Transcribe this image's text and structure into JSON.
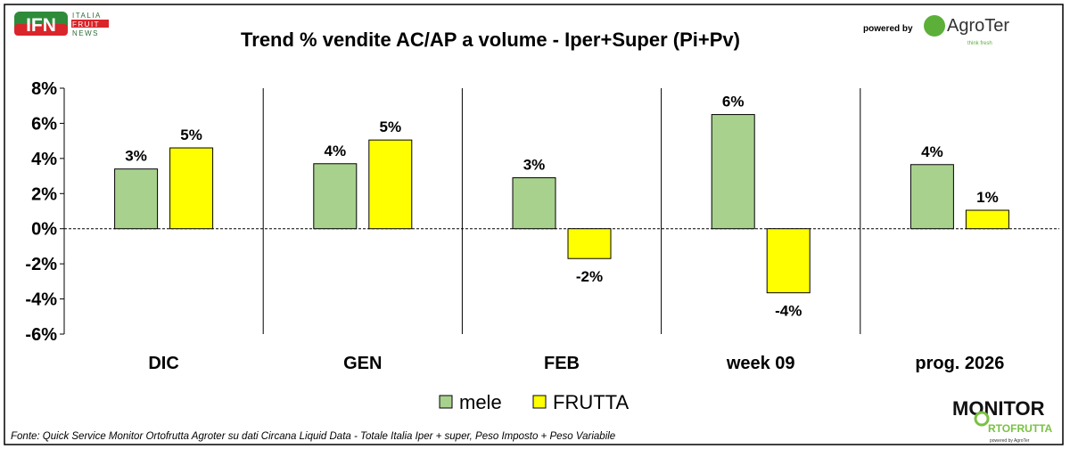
{
  "logos": {
    "ifn": {
      "mark": "IFN",
      "line1": "ITALIA",
      "line2": "FRUIT",
      "line3": "NEWS"
    },
    "powered_by": "powered by",
    "agroter": {
      "name": "AgroTer",
      "tagline": "think fresh"
    },
    "monitor": {
      "line1": "MONITOR",
      "line2": "RTOFRUTTA",
      "tagline": "powered by AgroTer"
    }
  },
  "footer_source": "Fonte: Quick Service Monitor Ortofrutta Agroter su dati Circana Liquid Data - Totale Italia Iper + super, Peso Imposto + Peso Variabile",
  "colors": {
    "mele": "#a9d18e",
    "frutta": "#ffff00",
    "border": "#000000"
  },
  "chart_data": {
    "type": "bar",
    "title": "Trend % vendite AC/AP a volume -  Iper+Super (Pi+Pv)",
    "categories": [
      "DIC",
      "GEN",
      "FEB",
      "week 09",
      "prog. 2026"
    ],
    "series": [
      {
        "name": "mele",
        "values": [
          3.4,
          3.7,
          2.9,
          6.5,
          3.65
        ],
        "labels": [
          "3%",
          "4%",
          "3%",
          "6%",
          "4%"
        ]
      },
      {
        "name": "FRUTTA",
        "values": [
          4.6,
          5.05,
          -1.7,
          -3.65,
          1.05
        ],
        "labels": [
          "5%",
          "5%",
          "-2%",
          "-4%",
          "1%"
        ]
      }
    ],
    "yticks": [
      "8%",
      "6%",
      "4%",
      "2%",
      "0%",
      "-2%",
      "-4%",
      "-6%"
    ],
    "ytick_values": [
      8,
      6,
      4,
      2,
      0,
      -2,
      -4,
      -6
    ],
    "ylim": [
      -6,
      8
    ],
    "xlabel": "",
    "ylabel": "",
    "legend": "bottom-center",
    "grid": false
  }
}
